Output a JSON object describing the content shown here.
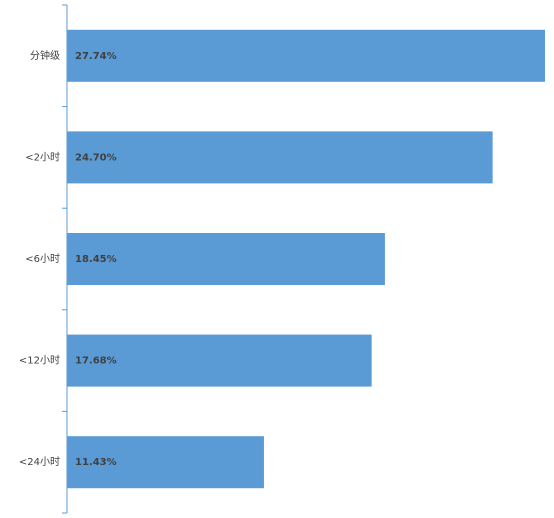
{
  "chart_data": {
    "type": "bar",
    "orientation": "horizontal",
    "categories": [
      "分钟级",
      "<2小时",
      "<6小时",
      "<12小时",
      "<24小时"
    ],
    "values": [
      27.74,
      24.7,
      18.45,
      17.68,
      11.43
    ],
    "value_labels": [
      "27.74%",
      "24.70%",
      "18.45%",
      "17.68%",
      "11.43%"
    ],
    "color": "#5b9bd5"
  }
}
